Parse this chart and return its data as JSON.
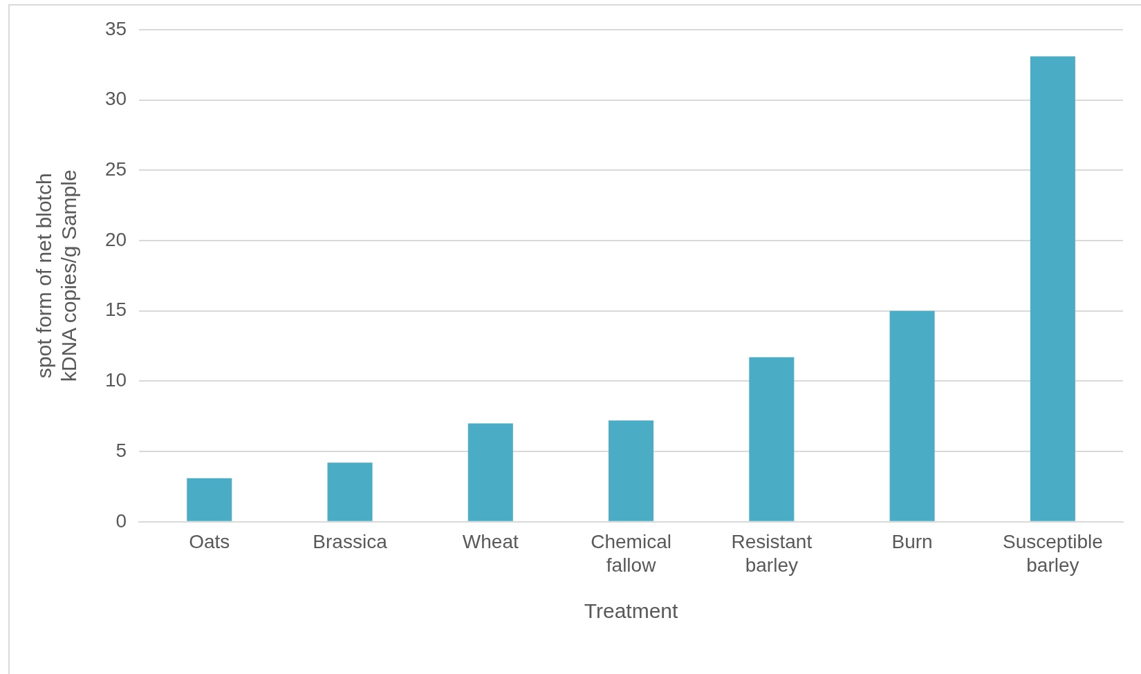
{
  "chart_data": {
    "type": "bar",
    "xlabel": "Treatment",
    "ylabel": "spot form of net blotch\nkDNA copies/g Sample",
    "categories": [
      "Oats",
      "Brassica",
      "Wheat",
      "Chemical fallow",
      "Resistant barley",
      "Burn",
      "Susceptible barley"
    ],
    "values": [
      3.1,
      4.2,
      7.0,
      7.2,
      11.7,
      15.0,
      33.1
    ],
    "color": "#4bacc6",
    "ylim": [
      0,
      35
    ],
    "yticks": [
      0,
      5,
      10,
      15,
      20,
      25,
      30,
      35
    ],
    "grid": "y",
    "legend": false
  }
}
